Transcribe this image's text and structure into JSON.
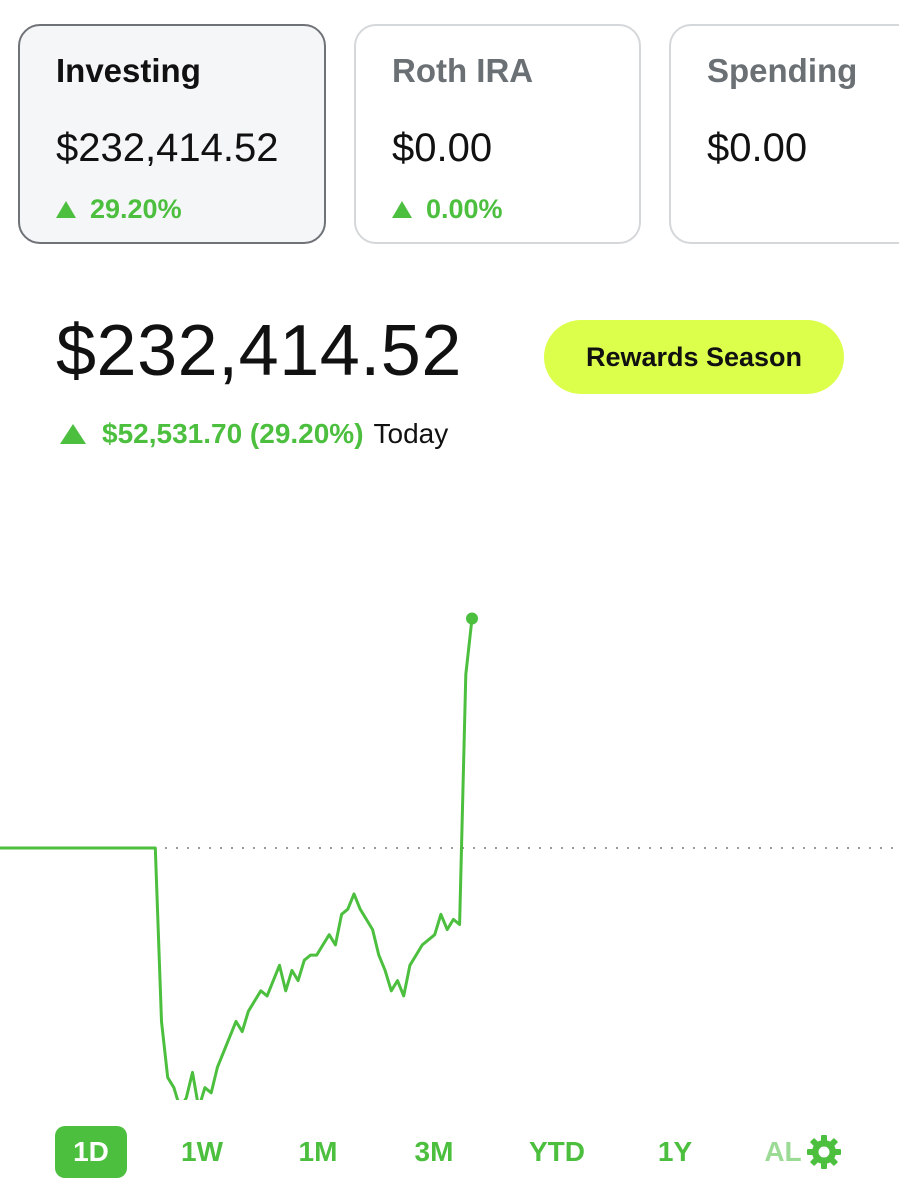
{
  "accounts": [
    {
      "title": "Investing",
      "value": "$232,414.52",
      "change": "29.20%"
    },
    {
      "title": "Roth IRA",
      "value": "$0.00",
      "change": "0.00%"
    },
    {
      "title": "Spending",
      "value": "$0.00"
    }
  ],
  "portfolio": {
    "value": "$232,414.52",
    "gain": "$52,531.70 (29.20%)",
    "period_label": "Today"
  },
  "rewards_button": "Rewards Season",
  "ranges": [
    "1D",
    "1W",
    "1M",
    "3M",
    "YTD",
    "1Y",
    "AL"
  ],
  "selected_range": "1D",
  "icons": {
    "up": "triangle-up-icon",
    "settings": "gear-icon"
  },
  "colors": {
    "gain": "#4cbf3f",
    "rewards": "#dcff4b",
    "text": "#111111"
  },
  "chart_data": {
    "type": "line",
    "title": "",
    "xlabel": "",
    "ylabel": "",
    "reference_line": "previous close (dotted)",
    "series": [
      {
        "values": [
          0,
          0,
          0,
          0,
          0,
          0,
          0,
          0,
          0,
          0,
          0,
          0,
          0,
          0,
          0,
          0,
          0,
          0,
          0,
          0,
          0,
          0,
          0,
          0,
          0,
          0,
          -34,
          -45,
          -47,
          -51,
          -49,
          -44,
          -51,
          -47,
          -48,
          -43,
          -40,
          -37,
          -34,
          -36,
          -32,
          -30,
          -28,
          -29,
          -26,
          -23,
          -28,
          -24,
          -26,
          -22,
          -21,
          -21,
          -19,
          -17,
          -19,
          -13,
          -12,
          -9,
          -12,
          -14,
          -16,
          -21,
          -24,
          -28,
          -26,
          -29,
          -23,
          -21,
          -19,
          -18,
          -17,
          -13,
          -16,
          -14,
          -15,
          34,
          45
        ]
      }
    ]
  }
}
